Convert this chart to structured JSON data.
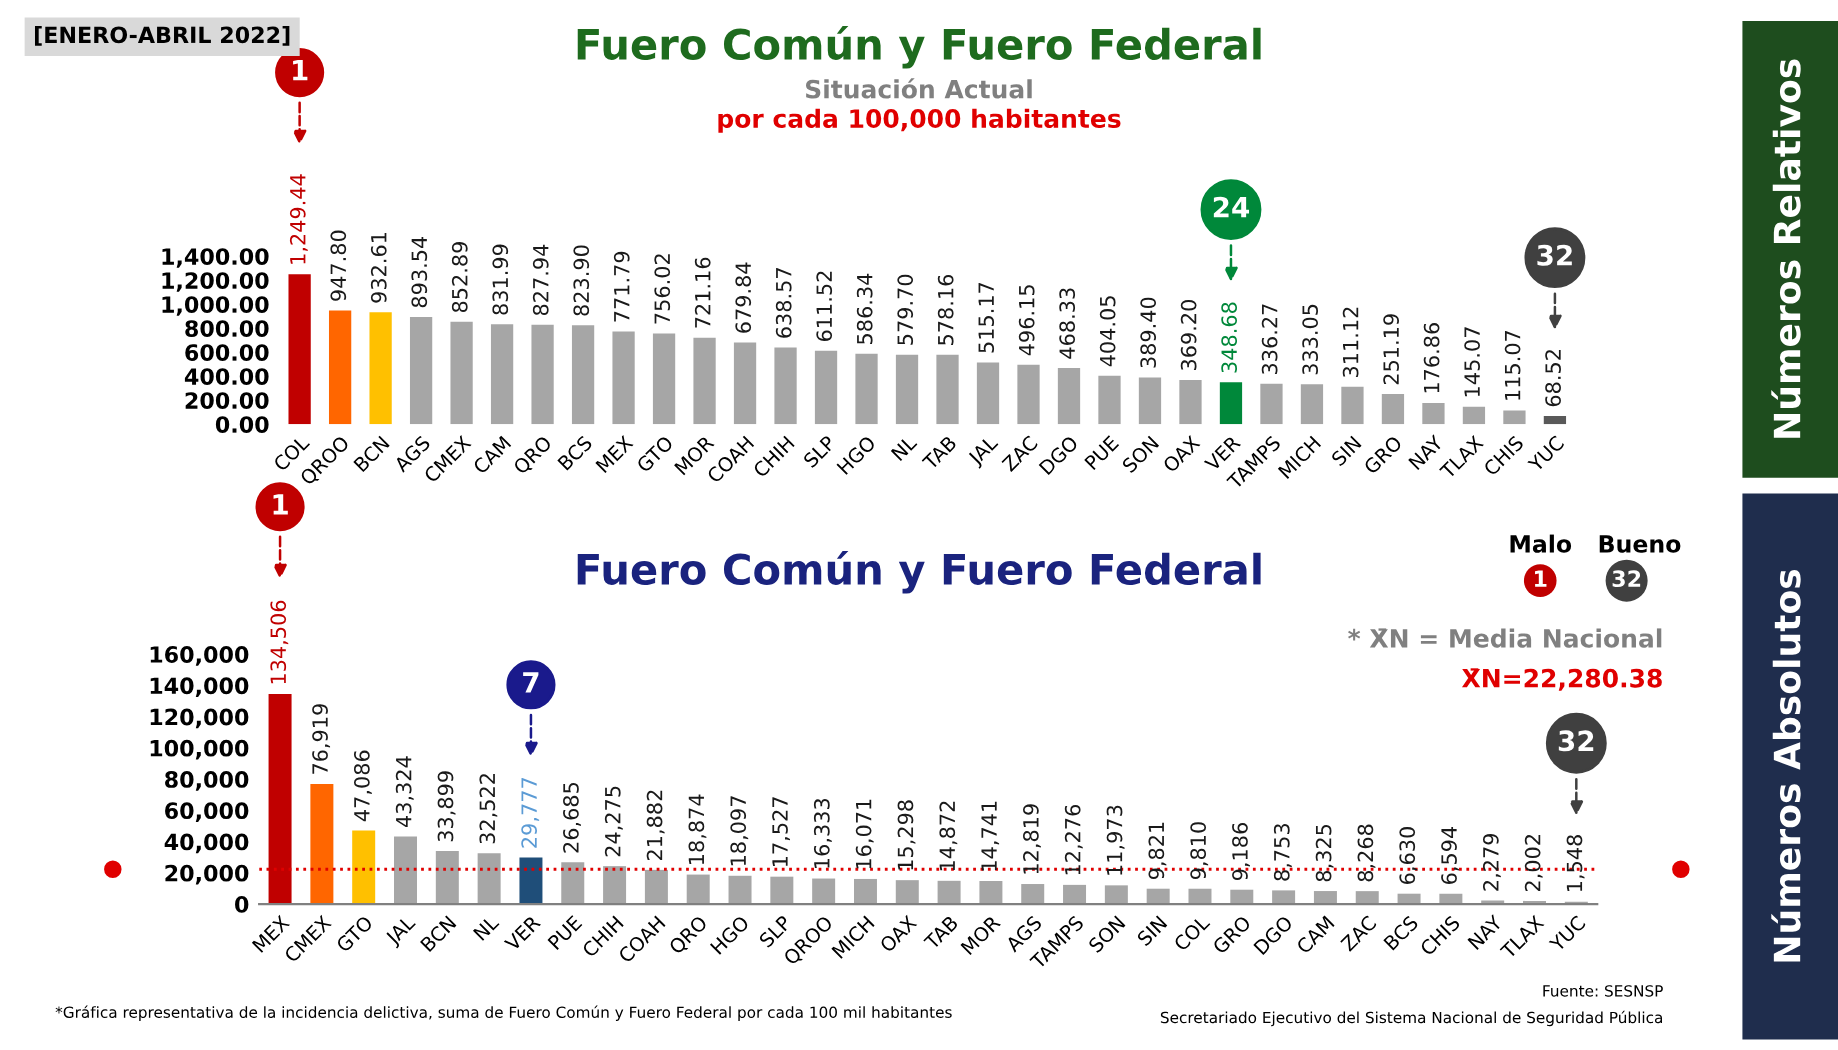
{
  "chart_data": [
    {
      "type": "bar",
      "title": "Fuero Común y Fuero Federal",
      "subtitle": "Situación Actual",
      "categories": [
        "COL",
        "QROO",
        "BCN",
        "AGS",
        "CMEX",
        "CAM",
        "QRO",
        "BCS",
        "MEX",
        "GTO",
        "MOR",
        "COAH",
        "CHIH",
        "SLP",
        "HGO",
        "NL",
        "TAB",
        "JAL",
        "ZAC",
        "DGO",
        "PUE",
        "SON",
        "OAX",
        "VER",
        "TAMPS",
        "MICH",
        "SIN",
        "GRO",
        "NAY",
        "TLAX",
        "CHIS",
        "YUC"
      ],
      "values": [
        1249.44,
        947.8,
        932.61,
        893.54,
        852.89,
        831.99,
        827.94,
        823.9,
        771.79,
        756.02,
        721.16,
        679.84,
        638.57,
        611.52,
        586.34,
        579.7,
        578.16,
        515.17,
        496.15,
        468.33,
        404.05,
        389.4,
        369.2,
        348.68,
        336.27,
        333.05,
        311.12,
        251.19,
        176.86,
        145.07,
        115.07,
        68.52
      ],
      "colors": [
        "#c00000",
        "#ff6600",
        "#ffc000",
        "#a6a6a6",
        "#a6a6a6",
        "#a6a6a6",
        "#a6a6a6",
        "#a6a6a6",
        "#a6a6a6",
        "#a6a6a6",
        "#a6a6a6",
        "#a6a6a6",
        "#a6a6a6",
        "#a6a6a6",
        "#a6a6a6",
        "#a6a6a6",
        "#a6a6a6",
        "#a6a6a6",
        "#a6a6a6",
        "#a6a6a6",
        "#a6a6a6",
        "#a6a6a6",
        "#a6a6a6",
        "#00883a",
        "#a6a6a6",
        "#a6a6a6",
        "#a6a6a6",
        "#a6a6a6",
        "#a6a6a6",
        "#a6a6a6",
        "#a6a6a6",
        "#595959"
      ],
      "value_labels": [
        "1,249.44",
        "947.80",
        "932.61",
        "893.54",
        "852.89",
        "831.99",
        "827.94",
        "823.90",
        "771.79",
        "756.02",
        "721.16",
        "679.84",
        "638.57",
        "611.52",
        "586.34",
        "579.70",
        "578.16",
        "515.17",
        "496.15",
        "468.33",
        "404.05",
        "389.40",
        "369.20",
        "348.68",
        "336.27",
        "333.05",
        "311.12",
        "251.19",
        "176.86",
        "145.07",
        "115.07",
        "68.52"
      ],
      "ylim": [
        0,
        1400
      ],
      "yticks": [
        {
          "value": 0,
          "label": "0.00"
        },
        {
          "value": 200,
          "label": "200.00"
        },
        {
          "value": 400,
          "label": "400.00"
        },
        {
          "value": 600,
          "label": "600.00"
        },
        {
          "value": 800,
          "label": "800.00"
        },
        {
          "value": 1000,
          "label": "1,000.00"
        },
        {
          "value": 1200,
          "label": "1,200.00"
        },
        {
          "value": 1400,
          "label": "1,400.00"
        }
      ],
      "annotations": [
        "[ENERO-ABRIL 2022]",
        "por cada 100,000 habitantes",
        "Números Relativos",
        "1",
        "24",
        "32"
      ]
    },
    {
      "type": "bar",
      "title": "Fuero Común y Fuero Federal",
      "categories": [
        "MEX",
        "CMEX",
        "GTO",
        "JAL",
        "BCN",
        "NL",
        "VER",
        "PUE",
        "CHIH",
        "COAH",
        "QRO",
        "HGO",
        "SLP",
        "QROO",
        "MICH",
        "OAX",
        "TAB",
        "MOR",
        "AGS",
        "TAMPS",
        "SON",
        "SIN",
        "COL",
        "GRO",
        "DGO",
        "CAM",
        "ZAC",
        "BCS",
        "CHIS",
        "NAY",
        "TLAX",
        "YUC"
      ],
      "values": [
        134506,
        76919,
        47086,
        43324,
        33899,
        32522,
        29777,
        26685,
        24275,
        21882,
        18874,
        18097,
        17527,
        16333,
        16071,
        15298,
        14872,
        14741,
        12819,
        12276,
        11973,
        9821,
        9810,
        9186,
        8753,
        8325,
        8268,
        6630,
        6594,
        2279,
        2002,
        1548
      ],
      "colors": [
        "#c00000",
        "#ff6600",
        "#ffc000",
        "#a6a6a6",
        "#a6a6a6",
        "#a6a6a6",
        "#1f4e79",
        "#a6a6a6",
        "#a6a6a6",
        "#a6a6a6",
        "#a6a6a6",
        "#a6a6a6",
        "#a6a6a6",
        "#a6a6a6",
        "#a6a6a6",
        "#a6a6a6",
        "#a6a6a6",
        "#a6a6a6",
        "#a6a6a6",
        "#a6a6a6",
        "#a6a6a6",
        "#a6a6a6",
        "#a6a6a6",
        "#a6a6a6",
        "#a6a6a6",
        "#a6a6a6",
        "#a6a6a6",
        "#a6a6a6",
        "#a6a6a6",
        "#a6a6a6",
        "#a6a6a6",
        "#a6a6a6"
      ],
      "value_labels": [
        "134,506",
        "76,919",
        "47,086",
        "43,324",
        "33,899",
        "32,522",
        "29,777",
        "26,685",
        "24,275",
        "21,882",
        "18,874",
        "18,097",
        "17,527",
        "16,333",
        "16,071",
        "15,298",
        "14,872",
        "14,741",
        "12,819",
        "12,276",
        "11,973",
        "9,821",
        "9,810",
        "9,186",
        "8,753",
        "8,325",
        "8,268",
        "6,630",
        "6,594",
        "2,279",
        "2,002",
        "1,548"
      ],
      "ylim": [
        0,
        160000
      ],
      "yticks": [
        0,
        {
          "value": 20000,
          "label": "20,000"
        },
        {
          "value": 40000,
          "label": "40,000"
        },
        {
          "value": 60000,
          "label": "60,000"
        },
        {
          "value": 80000,
          "label": "80,000"
        },
        {
          "value": 100000,
          "label": "100,000"
        },
        {
          "value": 120000,
          "label": "120,000"
        },
        {
          "value": 140000,
          "label": "140,000"
        },
        {
          "value": 160000,
          "label": "160,000"
        }
      ],
      "ref_lines": [
        {
          "axis": "y",
          "value": 22280.38,
          "label": "X̄N=22,280.38",
          "color": "#e00000",
          "line_style": "dotted"
        }
      ],
      "annotations": [
        "Números Absolutos",
        "1",
        "7",
        "32",
        "Malo",
        "Bueno",
        "1",
        "32",
        "* X̄N = Media Nacional",
        "*Gráfica representativa de la incidencia delictiva, suma de Fuero Común y Fuero Federal por cada 100 mil habitantes",
        "Fuente: SESNSP",
        "Secretariado Ejecutivo del Sistema Nacional de Seguridad Pública"
      ]
    }
  ]
}
